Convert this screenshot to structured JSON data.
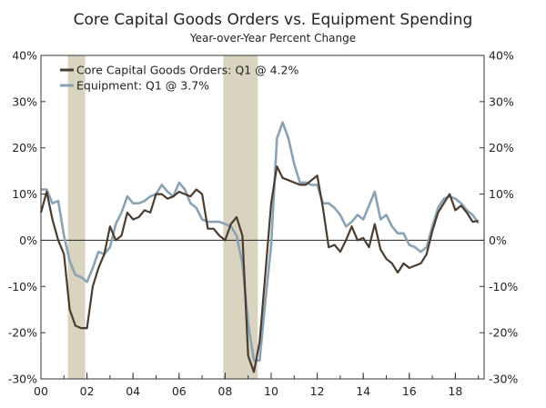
{
  "chart_data": {
    "type": "line",
    "title": "Core Capital Goods Orders vs. Equipment Spending",
    "subtitle": "Year-over-Year Percent Change",
    "xlabel": "",
    "ylabel": "",
    "xlim": [
      2000.0,
      2019.25
    ],
    "ylim": [
      -30,
      40
    ],
    "y_ticks": [
      40,
      30,
      20,
      10,
      0,
      -10,
      -20,
      -30
    ],
    "y_tick_labels": [
      "40%",
      "30%",
      "20%",
      "10%",
      "0%",
      "-10%",
      "-20%",
      "-30%"
    ],
    "x_ticks": [
      2000,
      2002,
      2004,
      2006,
      2008,
      2010,
      2012,
      2014,
      2016,
      2018
    ],
    "x_tick_labels": [
      "00",
      "02",
      "04",
      "06",
      "08",
      "10",
      "12",
      "14",
      "16",
      "18"
    ],
    "recessions": [
      [
        2001.17,
        2001.92
      ],
      [
        2007.92,
        2009.42
      ]
    ],
    "legend_position": "top-left",
    "series": [
      {
        "name": "Core Capital Goods Orders: Q1 @ 4.2%",
        "color": "#4a3c30",
        "x": [
          2000.0,
          2000.25,
          2000.5,
          2000.75,
          2001.0,
          2001.25,
          2001.5,
          2001.75,
          2002.0,
          2002.25,
          2002.5,
          2002.75,
          2003.0,
          2003.25,
          2003.5,
          2003.75,
          2004.0,
          2004.25,
          2004.5,
          2004.75,
          2005.0,
          2005.25,
          2005.5,
          2005.75,
          2006.0,
          2006.25,
          2006.5,
          2006.75,
          2007.0,
          2007.25,
          2007.5,
          2007.75,
          2008.0,
          2008.25,
          2008.5,
          2008.75,
          2009.0,
          2009.25,
          2009.5,
          2009.75,
          2010.0,
          2010.25,
          2010.5,
          2010.75,
          2011.0,
          2011.25,
          2011.5,
          2011.75,
          2012.0,
          2012.25,
          2012.5,
          2012.75,
          2013.0,
          2013.25,
          2013.5,
          2013.75,
          2014.0,
          2014.25,
          2014.5,
          2014.75,
          2015.0,
          2015.25,
          2015.5,
          2015.75,
          2016.0,
          2016.25,
          2016.5,
          2016.75,
          2017.0,
          2017.25,
          2017.5,
          2017.75,
          2018.0,
          2018.25,
          2018.5,
          2018.75,
          2019.0
        ],
        "values": [
          6.0,
          10.5,
          4.5,
          0.0,
          -3.0,
          -15.0,
          -18.5,
          -19.0,
          -19.0,
          -10.0,
          -6.0,
          -3.0,
          3.0,
          0.0,
          1.0,
          6.0,
          4.5,
          5.0,
          6.5,
          6.0,
          10.0,
          10.0,
          9.0,
          9.5,
          10.5,
          10.0,
          9.5,
          11.0,
          10.0,
          2.5,
          2.5,
          1.0,
          0.0,
          3.5,
          5.0,
          1.0,
          -25.0,
          -28.5,
          -22.0,
          -7.0,
          8.0,
          16.0,
          13.5,
          13.0,
          12.5,
          12.0,
          12.0,
          13.0,
          14.0,
          7.0,
          -1.5,
          -1.0,
          -2.5,
          0.0,
          3.0,
          0.0,
          0.5,
          -1.5,
          3.5,
          -2.0,
          -4.0,
          -5.0,
          -7.0,
          -5.0,
          -6.0,
          -5.5,
          -5.0,
          -3.0,
          2.0,
          6.0,
          8.0,
          10.0,
          6.5,
          7.5,
          6.0,
          4.0,
          4.2
        ]
      },
      {
        "name": "Equipment: Q1 @ 3.7%",
        "color": "#8ba2b2",
        "x": [
          2000.0,
          2000.25,
          2000.5,
          2000.75,
          2001.0,
          2001.25,
          2001.5,
          2001.75,
          2002.0,
          2002.25,
          2002.5,
          2002.75,
          2003.0,
          2003.25,
          2003.5,
          2003.75,
          2004.0,
          2004.25,
          2004.5,
          2004.75,
          2005.0,
          2005.25,
          2005.5,
          2005.75,
          2006.0,
          2006.25,
          2006.5,
          2006.75,
          2007.0,
          2007.25,
          2007.5,
          2007.75,
          2008.0,
          2008.25,
          2008.5,
          2008.75,
          2009.0,
          2009.25,
          2009.5,
          2009.75,
          2010.0,
          2010.25,
          2010.5,
          2010.75,
          2011.0,
          2011.25,
          2011.5,
          2011.75,
          2012.0,
          2012.25,
          2012.5,
          2012.75,
          2013.0,
          2013.25,
          2013.5,
          2013.75,
          2014.0,
          2014.25,
          2014.5,
          2014.75,
          2015.0,
          2015.25,
          2015.5,
          2015.75,
          2016.0,
          2016.25,
          2016.5,
          2016.75,
          2017.0,
          2017.25,
          2017.5,
          2017.75,
          2018.0,
          2018.25,
          2018.5,
          2018.75,
          2019.0
        ],
        "values": [
          11.0,
          11.0,
          8.0,
          8.5,
          1.0,
          -4.5,
          -7.5,
          -8.0,
          -9.0,
          -6.0,
          -2.5,
          -3.0,
          -1.5,
          3.5,
          6.0,
          9.5,
          8.0,
          8.0,
          8.5,
          9.5,
          10.0,
          12.0,
          10.5,
          9.5,
          12.5,
          11.0,
          8.0,
          7.0,
          4.5,
          4.0,
          4.0,
          4.0,
          3.5,
          3.0,
          1.0,
          -5.0,
          -18.0,
          -26.0,
          -26.0,
          -13.0,
          -1.0,
          22.0,
          25.5,
          22.0,
          16.5,
          12.5,
          12.5,
          12.0,
          12.0,
          8.0,
          8.0,
          7.0,
          5.5,
          3.0,
          4.0,
          5.5,
          4.5,
          7.5,
          10.5,
          4.5,
          5.5,
          3.0,
          1.5,
          1.5,
          -1.0,
          -1.5,
          -2.5,
          -1.5,
          3.0,
          7.0,
          9.0,
          9.5,
          9.0,
          8.0,
          6.5,
          5.5,
          3.7
        ]
      }
    ]
  }
}
